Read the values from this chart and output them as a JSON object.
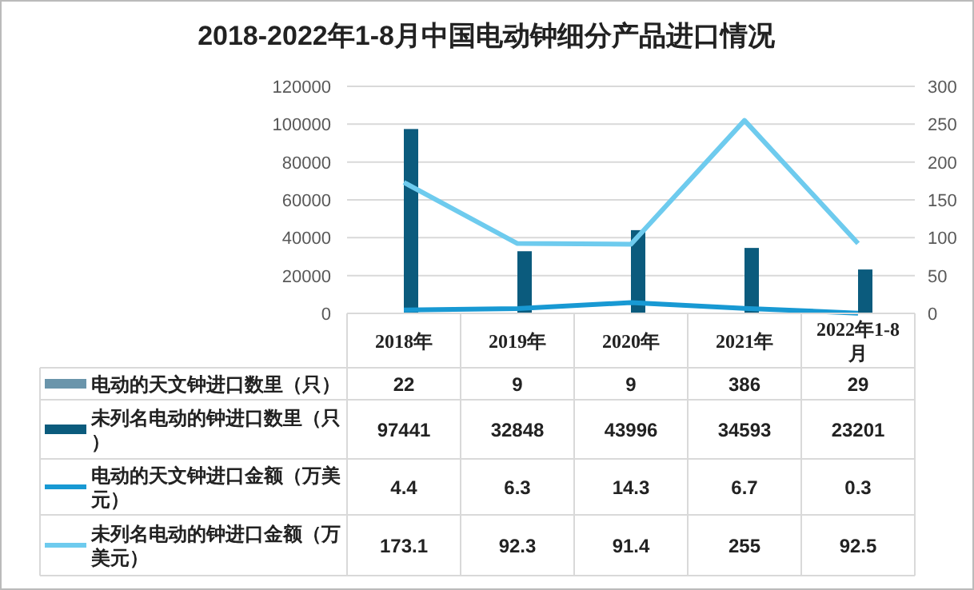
{
  "chart_data": {
    "type": "bar",
    "title": "2018-2022年1-8月中国电动钟细分产品进口情况",
    "categories": [
      "2018年",
      "2019年",
      "2020年",
      "2021年",
      "2022年1-8月"
    ],
    "series": [
      {
        "name": "电动的天文钟进口数里（只）",
        "color": "#6a95ab",
        "values": [
          22,
          9,
          9,
          386,
          29
        ]
      },
      {
        "name": "未列名电动的钟进口数里（只）",
        "color": "#0b5b7d",
        "values": [
          97441,
          32848,
          43996,
          34593,
          23201
        ]
      },
      {
        "name": "电动的天文钟进口金额（万美元）",
        "type": "line",
        "axis": "y2",
        "color": "#1899d3",
        "values": [
          4.4,
          6.3,
          14.3,
          6.7,
          0.3
        ]
      },
      {
        "name": "未列名电动的钟进口金额（万美元）",
        "type": "line",
        "axis": "y2",
        "color": "#6ecbee",
        "values": [
          173.1,
          92.3,
          91.4,
          255,
          92.5
        ]
      }
    ],
    "ylim": [
      0,
      120000
    ],
    "yticks": [
      0,
      20000,
      40000,
      60000,
      80000,
      100000,
      120000
    ],
    "y2lim": [
      0,
      300
    ],
    "y2ticks": [
      0,
      50,
      100,
      150,
      200,
      250,
      300
    ],
    "grid": "y",
    "legend": "bottom left",
    "data_labels": true
  }
}
